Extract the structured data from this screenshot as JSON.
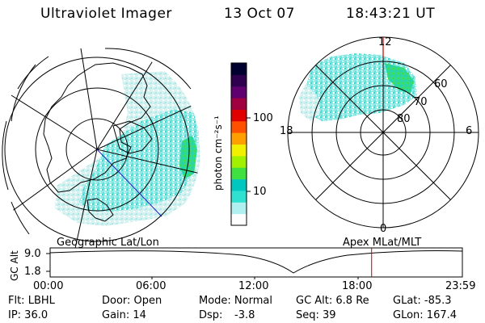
{
  "header": {
    "instrument": "Ultraviolet Imager",
    "date": "13 Oct 07",
    "time": "18:43:21 UT"
  },
  "colorbar": {
    "unit_label": "photon cm⁻²s⁻¹",
    "tick_labels": [
      "100",
      "10"
    ],
    "colors": [
      "#ffffff",
      "#b0f0f0",
      "#30e0d0",
      "#00c8c0",
      "#40e040",
      "#a0f000",
      "#f0f000",
      "#ffa000",
      "#ff5000",
      "#e00000",
      "#a00040",
      "#600070",
      "#300050",
      "#000030"
    ]
  },
  "left_map": {
    "caption": "Geographic Lat/Lon"
  },
  "right_map": {
    "caption": "Apex  MLat/MLT",
    "mlt_labels": {
      "top": "12",
      "bottom": "0",
      "left": "18",
      "right": "6"
    },
    "lat_labels": [
      "60",
      "70",
      "80"
    ]
  },
  "altitude_plot": {
    "ylabel": "GC Alt",
    "yticks": [
      "9.0",
      "1.8"
    ],
    "xticks": [
      "00:00",
      "06:00",
      "12:00",
      "18:00",
      "23:59"
    ],
    "current_time_marker": "18:43",
    "marker_color": "#c00000"
  },
  "footer": {
    "filter": "Flt: LBHL",
    "ip": "IP: 36.0",
    "door": "Door: Open",
    "gain": "Gain: 14",
    "mode": "Mode: Normal",
    "dsp_label": "Dsp:",
    "dsp_value": "-3.8",
    "gc_alt": "GC Alt: 6.8 Re",
    "seq": "Seq: 39",
    "glat": "GLat: -85.3",
    "glon": "GLon: 167.4"
  }
}
